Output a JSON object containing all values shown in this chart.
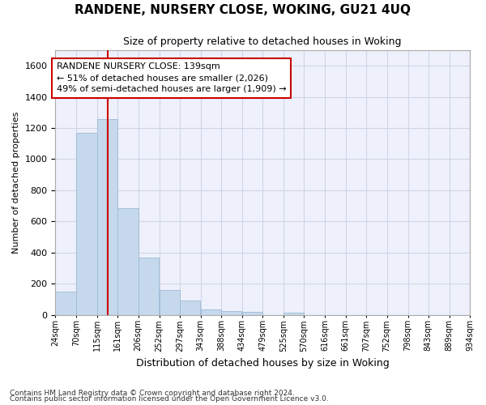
{
  "title": "RANDENE, NURSERY CLOSE, WOKING, GU21 4UQ",
  "subtitle": "Size of property relative to detached houses in Woking",
  "xlabel": "Distribution of detached houses by size in Woking",
  "ylabel": "Number of detached properties",
  "bar_color": "#c6d9ec",
  "bar_edgecolor": "#9bbad4",
  "grid_color": "#d0d4e8",
  "background_color": "#ffffff",
  "plot_bg_color": "#eef1fb",
  "vline_x": 139,
  "vline_color": "#cc0000",
  "annotation_text": "RANDENE NURSERY CLOSE: 139sqm\n← 51% of detached houses are smaller (2,026)\n49% of semi-detached houses are larger (1,909) →",
  "annotation_box_facecolor": "#ffffff",
  "annotation_box_edgecolor": "#cc0000",
  "bins": [
    24,
    70,
    115,
    161,
    206,
    252,
    297,
    343,
    388,
    434,
    479,
    525,
    570,
    616,
    661,
    707,
    752,
    798,
    843,
    889,
    934
  ],
  "bin_labels": [
    "24sqm",
    "70sqm",
    "115sqm",
    "161sqm",
    "206sqm",
    "252sqm",
    "297sqm",
    "343sqm",
    "388sqm",
    "434sqm",
    "479sqm",
    "525sqm",
    "570sqm",
    "616sqm",
    "661sqm",
    "707sqm",
    "752sqm",
    "798sqm",
    "843sqm",
    "889sqm",
    "934sqm"
  ],
  "bar_heights": [
    148,
    1170,
    1255,
    685,
    365,
    160,
    90,
    35,
    22,
    18,
    0,
    15,
    0,
    0,
    0,
    0,
    0,
    0,
    0,
    0
  ],
  "ylim": [
    0,
    1700
  ],
  "yticks": [
    0,
    200,
    400,
    600,
    800,
    1000,
    1200,
    1400,
    1600
  ],
  "footnote1": "Contains HM Land Registry data © Crown copyright and database right 2024.",
  "footnote2": "Contains public sector information licensed under the Open Government Licence v3.0."
}
